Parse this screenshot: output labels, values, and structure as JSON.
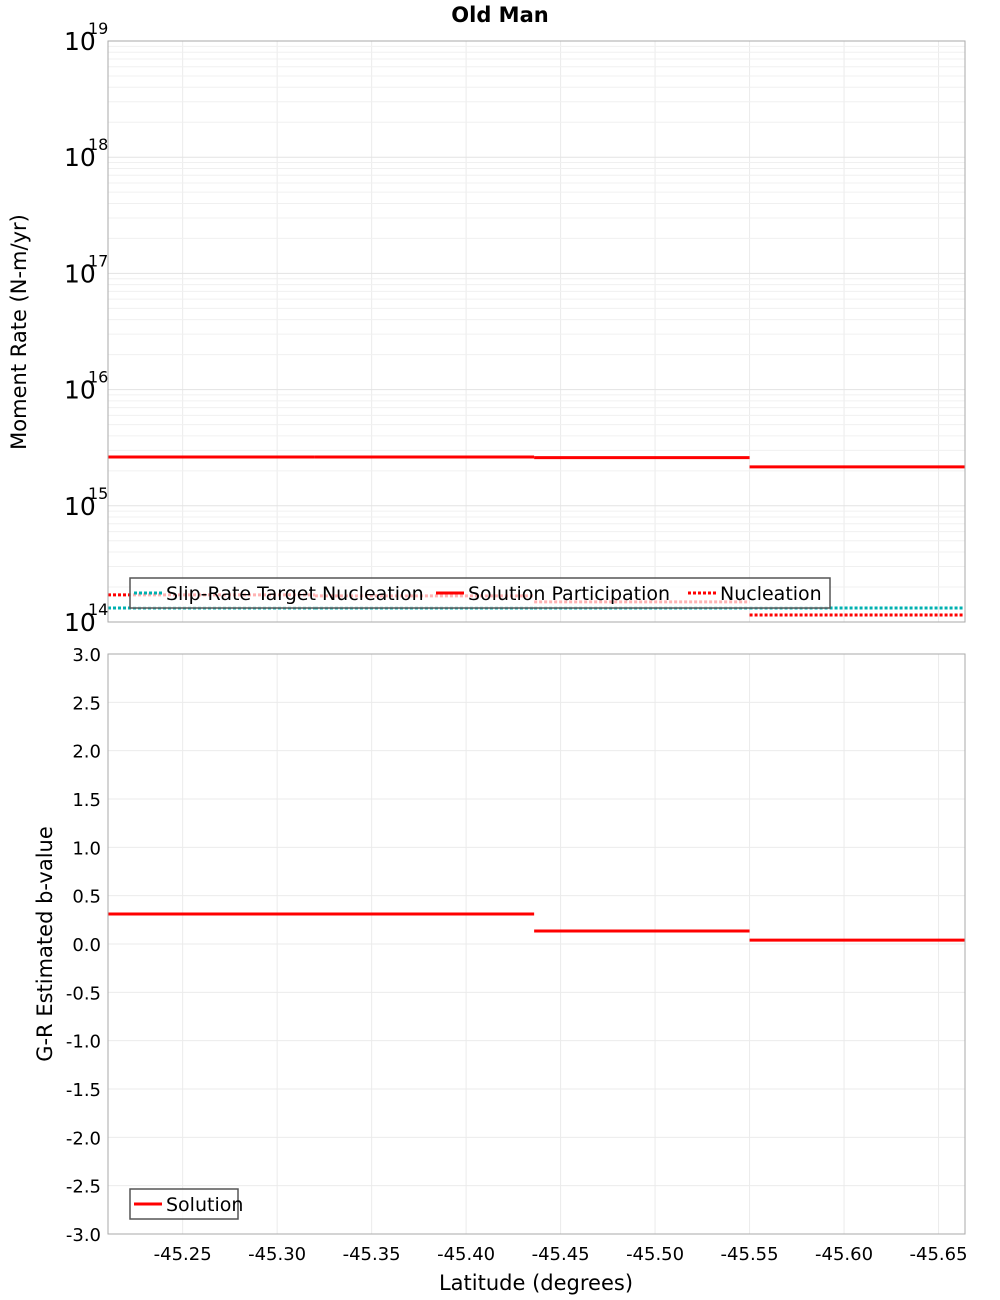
{
  "chart_data": [
    {
      "type": "line",
      "title": "Old Man",
      "xlabel": "",
      "ylabel": "Moment Rate (N-m/yr)",
      "yscale": "log",
      "ylim": [
        100000000000000.0,
        1e+19
      ],
      "xlim": [
        -45.2105,
        -45.664
      ],
      "x_reversed": true,
      "ytick_exponents": [
        "14",
        "15",
        "16",
        "17",
        "18",
        "19"
      ],
      "legend_position": "bottom-left",
      "segment_edges": [
        -45.2105,
        -45.32,
        -45.436,
        -45.55,
        -45.664
      ],
      "series": [
        {
          "name": "Slip-Rate Target Nucleation",
          "color": "#00b0b0",
          "style": "dotted",
          "values": [
            132000000000000.0,
            132000000000000.0,
            132000000000000.0,
            132000000000000.0
          ]
        },
        {
          "name": "Solution Participation",
          "color": "#ff0000",
          "style": "solid",
          "values": [
            2630000000000000.0,
            2630000000000000.0,
            2600000000000000.0,
            2160000000000000.0
          ]
        },
        {
          "name": "Nucleation",
          "color": "#ff0000",
          "style": "dotted",
          "values": [
            171000000000000.0,
            168000000000000.0,
            149000000000000.0,
            115000000000000.0
          ]
        }
      ]
    },
    {
      "type": "line",
      "xlabel": "Latitude (degrees)",
      "ylabel": "G-R Estimated b-value",
      "ylim": [
        -3.0,
        3.0
      ],
      "xlim": [
        -45.2105,
        -45.664
      ],
      "x_reversed": true,
      "yticks": [
        "3.0",
        "2.5",
        "2.0",
        "1.5",
        "1.0",
        "0.5",
        "0.0",
        "-0.5",
        "-1.0",
        "-1.5",
        "-2.0",
        "-2.5",
        "-3.0"
      ],
      "xticks": [
        "-45.25",
        "-45.30",
        "-45.35",
        "-45.40",
        "-45.45",
        "-45.50",
        "-45.55",
        "-45.60",
        "-45.65"
      ],
      "legend_position": "bottom-left",
      "segment_edges": [
        -45.2105,
        -45.436,
        -45.55,
        -45.664
      ],
      "series": [
        {
          "name": "Solution",
          "color": "#ff0000",
          "style": "solid",
          "values": [
            0.31,
            0.135,
            0.04
          ]
        }
      ]
    }
  ]
}
